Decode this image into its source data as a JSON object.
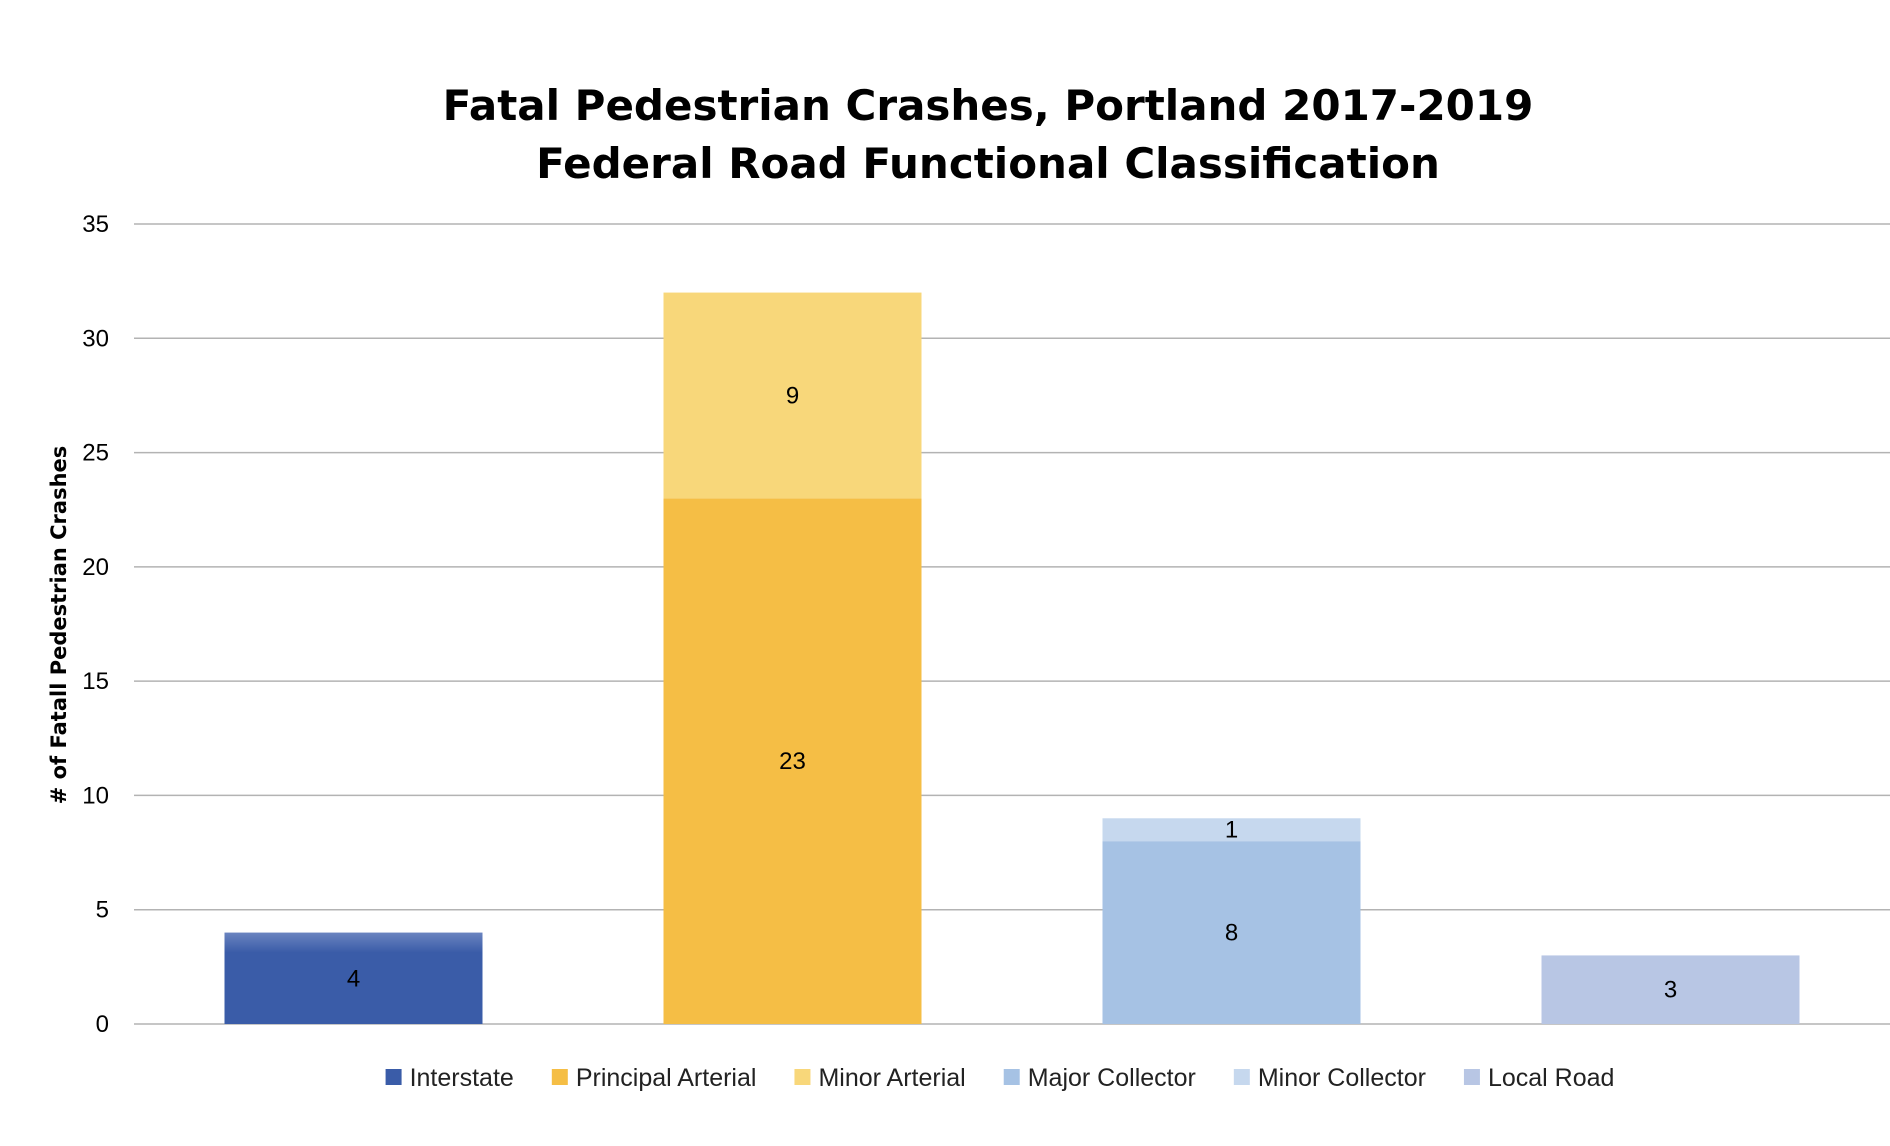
{
  "chart_data": {
    "type": "bar",
    "stacked": true,
    "title": "Fatal Pedestrian Crashes, Portland 2017-2019",
    "subtitle": "Federal Road Functional Classification",
    "xlabel": "",
    "ylabel": "# of Fatall Pedestrian Crashes",
    "ylim": [
      0,
      35
    ],
    "yticks": [
      0,
      5,
      10,
      15,
      20,
      25,
      30,
      35
    ],
    "grid": true,
    "legend_position": "bottom",
    "categories": [
      "",
      "",
      "",
      ""
    ],
    "series": [
      {
        "name": "Interstate",
        "color": "#3a5ca8",
        "color_top": "#6a84c0",
        "values": [
          4,
          0,
          0,
          0
        ]
      },
      {
        "name": "Principal Arterial",
        "color": "#f5be45",
        "values": [
          0,
          23,
          0,
          0
        ]
      },
      {
        "name": "Minor Arterial",
        "color": "#f8d77a",
        "values": [
          0,
          9,
          0,
          0
        ]
      },
      {
        "name": "Major Collector",
        "color": "#a6c2e4",
        "values": [
          0,
          0,
          8,
          0
        ]
      },
      {
        "name": "Minor Collector",
        "color": "#c6d8ee",
        "values": [
          0,
          0,
          1,
          0
        ]
      },
      {
        "name": "Local Road",
        "color": "#b8c6e4",
        "values": [
          0,
          0,
          0,
          3
        ]
      }
    ]
  }
}
